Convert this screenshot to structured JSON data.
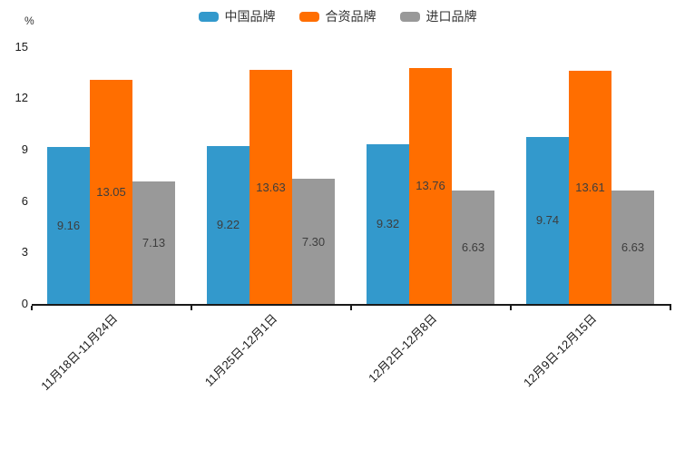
{
  "chart_data": {
    "type": "bar",
    "title": "",
    "unit_label": "%",
    "categories": [
      "11月18日-11月24日",
      "11月25日-12月1日",
      "12月2日-12月8日",
      "12月9日-12月15日"
    ],
    "series": [
      {
        "name": "中国品牌",
        "color": "#3399CC",
        "values": [
          9.16,
          9.22,
          9.32,
          9.74
        ]
      },
      {
        "name": "合资品牌",
        "color": "#FF6E00",
        "values": [
          13.05,
          13.63,
          13.76,
          13.61
        ]
      },
      {
        "name": "进口品牌",
        "color": "#999999",
        "values": [
          7.13,
          7.3,
          6.63,
          6.63
        ]
      }
    ],
    "yticks": [
      0,
      3,
      6,
      9,
      12,
      15
    ],
    "ylim": [
      0,
      15
    ],
    "value_labels": true,
    "value_decimals": 2,
    "legend_position": "top",
    "grid": false,
    "axis_color": "#1a1a1a",
    "value_label_color": "#3d3d3d"
  }
}
